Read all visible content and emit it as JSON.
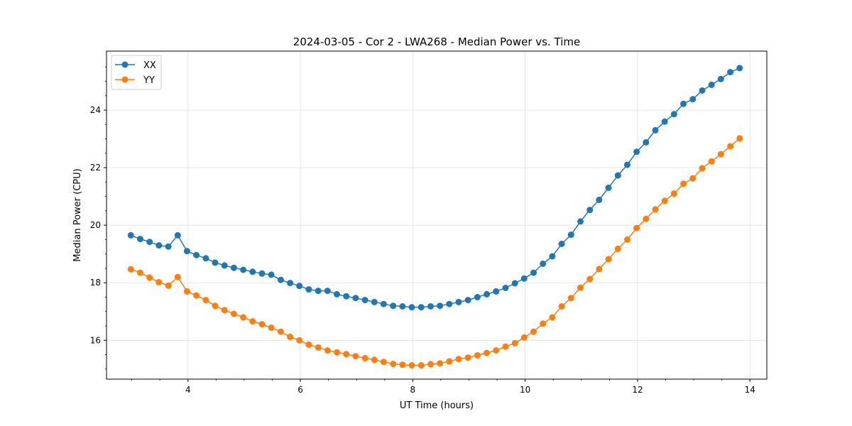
{
  "chart_data": {
    "type": "line",
    "title": "2024-03-05 - Cor 2 - LWA268 - Median Power vs. Time",
    "xlabel": "UT Time (hours)",
    "ylabel": "Median Power (CPU)",
    "xlim": [
      2.55,
      14.3
    ],
    "ylim": [
      14.65,
      26.05
    ],
    "xticks": [
      4,
      6,
      8,
      10,
      12,
      14
    ],
    "yticks": [
      16,
      18,
      20,
      22,
      24
    ],
    "grid": true,
    "legend_position": "top-left",
    "x": [
      2.983,
      3.15,
      3.317,
      3.483,
      3.65,
      3.817,
      3.983,
      4.15,
      4.317,
      4.483,
      4.65,
      4.817,
      4.983,
      5.15,
      5.317,
      5.483,
      5.65,
      5.817,
      5.983,
      6.15,
      6.317,
      6.483,
      6.65,
      6.817,
      6.983,
      7.15,
      7.317,
      7.483,
      7.65,
      7.817,
      7.983,
      8.15,
      8.317,
      8.483,
      8.65,
      8.817,
      8.983,
      9.15,
      9.317,
      9.483,
      9.65,
      9.817,
      9.983,
      10.15,
      10.317,
      10.483,
      10.65,
      10.817,
      10.983,
      11.15,
      11.317,
      11.483,
      11.65,
      11.817,
      11.983,
      12.15,
      12.317,
      12.483,
      12.65,
      12.817,
      12.983,
      13.15,
      13.317,
      13.483,
      13.65,
      13.817
    ],
    "series": [
      {
        "name": "XX",
        "color": "#1f77b4",
        "values": [
          19.65,
          19.52,
          19.42,
          19.3,
          19.26,
          19.65,
          19.1,
          18.96,
          18.85,
          18.7,
          18.6,
          18.52,
          18.45,
          18.38,
          18.32,
          18.28,
          18.1,
          17.99,
          17.89,
          17.77,
          17.72,
          17.72,
          17.6,
          17.53,
          17.47,
          17.4,
          17.33,
          17.26,
          17.2,
          17.18,
          17.15,
          17.15,
          17.18,
          17.2,
          17.26,
          17.33,
          17.4,
          17.5,
          17.6,
          17.7,
          17.82,
          17.98,
          18.15,
          18.35,
          18.66,
          18.92,
          19.35,
          19.67,
          20.13,
          20.53,
          20.88,
          21.3,
          21.73,
          22.1,
          22.55,
          22.88,
          23.3,
          23.6,
          23.86,
          24.22,
          24.38,
          24.68,
          24.88,
          25.08,
          25.32,
          25.46
        ]
      },
      {
        "name": "YY",
        "color": "#ff7f0e",
        "values": [
          18.47,
          18.35,
          18.18,
          18.02,
          17.9,
          18.2,
          17.7,
          17.56,
          17.4,
          17.2,
          17.05,
          16.92,
          16.8,
          16.66,
          16.56,
          16.44,
          16.3,
          16.12,
          16,
          15.85,
          15.75,
          15.65,
          15.58,
          15.52,
          15.45,
          15.38,
          15.32,
          15.25,
          15.18,
          15.15,
          15.13,
          15.13,
          15.17,
          15.2,
          15.27,
          15.35,
          15.4,
          15.48,
          15.56,
          15.65,
          15.78,
          15.9,
          16.1,
          16.3,
          16.58,
          16.8,
          17.18,
          17.47,
          17.83,
          18.13,
          18.48,
          18.82,
          19.18,
          19.5,
          19.9,
          20.22,
          20.55,
          20.85,
          21.1,
          21.44,
          21.63,
          21.98,
          22.22,
          22.47,
          22.74,
          23.02
        ]
      }
    ]
  }
}
